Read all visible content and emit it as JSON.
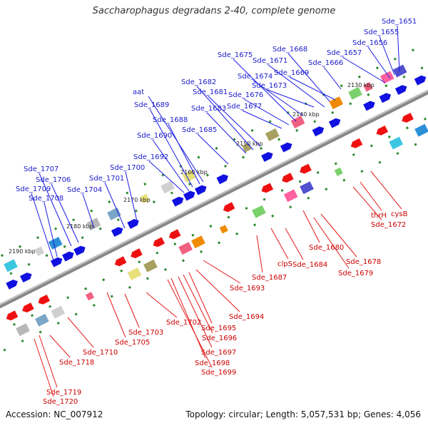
{
  "title": "Saccharophagus degradans 2-40, complete genome",
  "footer": {
    "accession": "Accession: NC_007912",
    "summary": "Topology: circular; Length: 5,057,531 bp; Genes: 4,056"
  },
  "colors": {
    "forward_label": "#1a1acc",
    "reverse_label": "#cc0000",
    "axis": "#888888",
    "tick": "#2d8a2d"
  },
  "scale_ticks": [
    "2130 kbp",
    "2140 kbp",
    "2150 kbp",
    "2160 kbp",
    "2170 kbp",
    "2180 kbp",
    "2190 kbp"
  ],
  "forward_genes": [
    "Sde_1651",
    "Sde_1655",
    "Sde_1656",
    "Sde_1657",
    "Sde_1666",
    "Sde_1668",
    "Sde_1669",
    "Sde_1671",
    "Sde_1673",
    "Sde_1674",
    "Sde_1675",
    "Sde_1676",
    "Sde_1677",
    "Sde_1681",
    "Sde_1682",
    "Sde_1683",
    "aat",
    "Sde_1685",
    "Sde_1688",
    "Sde_1689",
    "Sde_1690",
    "Sde_1692",
    "Sde_1700",
    "Sde_1701",
    "Sde_1704",
    "Sde_1706",
    "Sde_1707",
    "Sde_1708",
    "Sde_1709"
  ],
  "reverse_genes": [
    "cysB",
    "thrH",
    "Sde_1672",
    "Sde_1678",
    "Sde_1679",
    "Sde_1680",
    "Sde_1684",
    "clpS",
    "Sde_1687",
    "Sde_1693",
    "Sde_1694",
    "Sde_1695",
    "Sde_1696",
    "Sde_1697",
    "Sde_1698",
    "Sde_1699",
    "Sde_1702",
    "Sde_1703",
    "Sde_1705",
    "Sde_1710",
    "Sde_1718",
    "Sde_1719",
    "Sde_1720"
  ]
}
